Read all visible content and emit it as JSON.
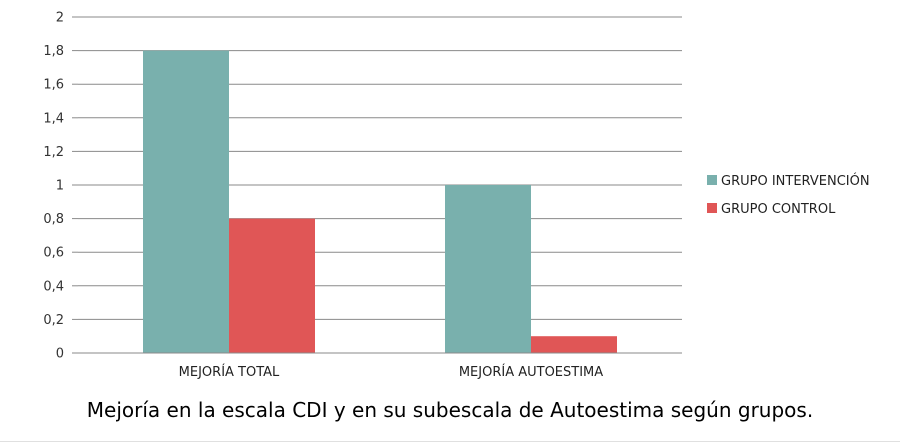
{
  "caption": "Mejoría en la escala CDI y en su subescala de Autoestima según grupos.",
  "chart_data": {
    "type": "bar",
    "title": "",
    "xlabel": "",
    "ylabel": "",
    "categories": [
      "MEJORÍA TOTAL",
      "MEJORÍA AUTOESTIMA"
    ],
    "series": [
      {
        "name": "GRUPO INTERVENCIÓN",
        "color": "#79b0ad",
        "values": [
          1.8,
          1.0
        ]
      },
      {
        "name": "GRUPO CONTROL",
        "color": "#e05656",
        "values": [
          0.8,
          0.1
        ]
      }
    ],
    "ylim": [
      0,
      2
    ],
    "yticks": [
      0,
      0.2,
      0.4,
      0.6,
      0.8,
      1,
      1.2,
      1.4,
      1.6,
      1.8,
      2
    ],
    "ytick_labels": [
      "0",
      "0,2",
      "0,4",
      "0,6",
      "0,8",
      "1",
      "1,2",
      "1,4",
      "1,6",
      "1,8",
      "2"
    ],
    "grid": true,
    "legend_position": "right"
  }
}
